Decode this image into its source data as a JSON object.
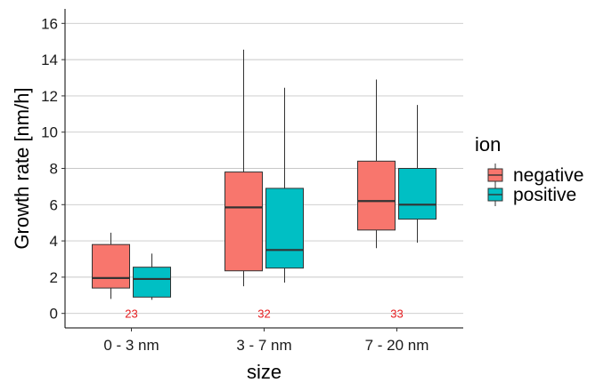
{
  "chart_data": {
    "type": "boxplot",
    "xlabel": "size",
    "ylabel": "Growth rate [nm/h]",
    "ylim": [
      -0.8,
      16.8
    ],
    "yticks": [
      0,
      2,
      4,
      6,
      8,
      10,
      12,
      14,
      16
    ],
    "grid": "horizontal major",
    "categories": [
      "0 - 3 nm",
      "3 - 7 nm",
      "7 - 20 nm"
    ],
    "counts": [
      "23",
      "32",
      "33"
    ],
    "count_color": "#e41a1c",
    "legend": {
      "title": "ion",
      "placement": "right"
    },
    "series": [
      {
        "name": "negative",
        "color": "#f8766d",
        "boxes": [
          {
            "min": 0.8,
            "q1": 1.4,
            "median": 1.95,
            "q3": 3.8,
            "max": 4.45
          },
          {
            "min": 1.5,
            "q1": 2.35,
            "median": 5.85,
            "q3": 7.8,
            "max": 14.55
          },
          {
            "min": 3.6,
            "q1": 4.6,
            "median": 6.2,
            "q3": 8.4,
            "max": 12.9
          }
        ]
      },
      {
        "name": "positive",
        "color": "#00bfc4",
        "boxes": [
          {
            "min": 0.75,
            "q1": 0.9,
            "median": 1.9,
            "q3": 2.55,
            "max": 3.3
          },
          {
            "min": 1.7,
            "q1": 2.5,
            "median": 3.5,
            "q3": 6.9,
            "max": 12.45
          },
          {
            "min": 3.9,
            "q1": 5.2,
            "median": 6.0,
            "q3": 8.0,
            "max": 11.5
          }
        ]
      }
    ]
  }
}
